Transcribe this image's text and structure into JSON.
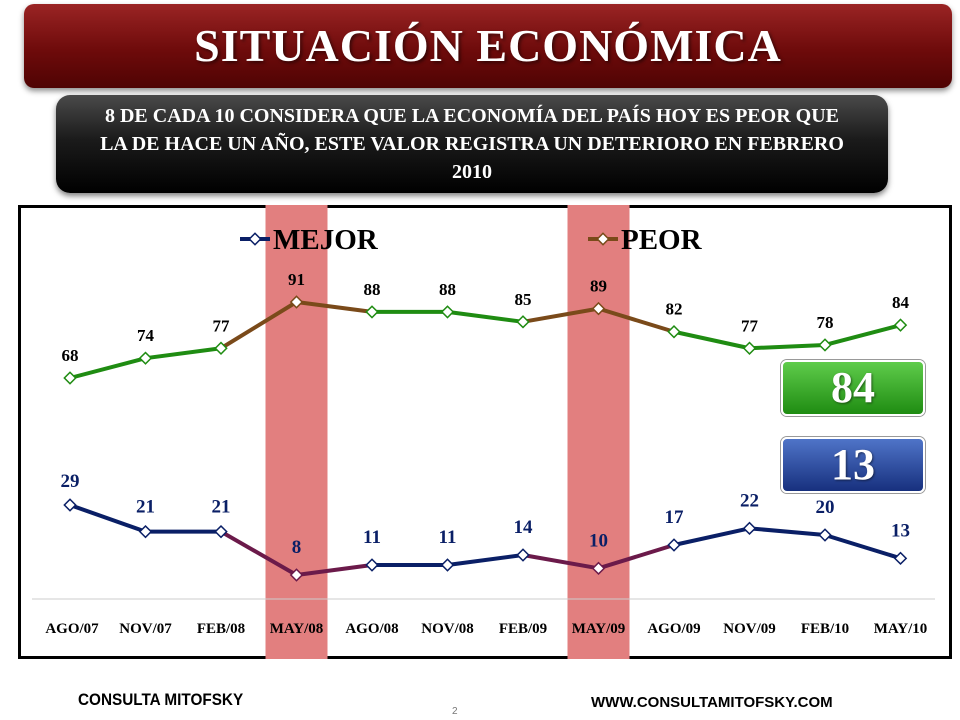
{
  "header": {
    "title": "SITUACIÓN ECONÓMICA",
    "subtitle": "8 DE CADA 10 CONSIDERA QUE LA ECONOMÍA DEL PAÍS HOY ES PEOR QUE LA DE HACE UN AÑO, ESTE VALOR REGISTRA UN DETERIORO EN FEBRERO 2010"
  },
  "highlight_boxes": {
    "peor": "84",
    "mejor": "13"
  },
  "footer": {
    "left": "CONSULTA MITOFSKY",
    "right": "WWW.CONSULTAMITOFSKY.COM",
    "page": "2"
  },
  "colors": {
    "mejor": "#0a1f66",
    "peor": "#1f8c12",
    "peor_highlight": "#7a4a1a",
    "mejor_highlight": "#6b1a4a",
    "highlight_band": "#e27f7f"
  },
  "chart_data": {
    "type": "line",
    "categories": [
      "AGO/07",
      "NOV/07",
      "FEB/08",
      "MAY/08",
      "AGO/08",
      "NOV/08",
      "FEB/09",
      "MAY/09",
      "AGO/09",
      "NOV/09",
      "FEB/10",
      "MAY/10"
    ],
    "series": [
      {
        "name": "MEJOR",
        "values": [
          29,
          21,
          21,
          8,
          11,
          11,
          14,
          10,
          17,
          22,
          20,
          13
        ]
      },
      {
        "name": "PEOR",
        "values": [
          68,
          74,
          77,
          91,
          88,
          88,
          85,
          89,
          82,
          77,
          78,
          84
        ]
      }
    ],
    "highlighted_categories": [
      "MAY/08",
      "MAY/09"
    ],
    "legend_position": "top",
    "ylim": [
      0,
      100
    ],
    "grid": false
  }
}
